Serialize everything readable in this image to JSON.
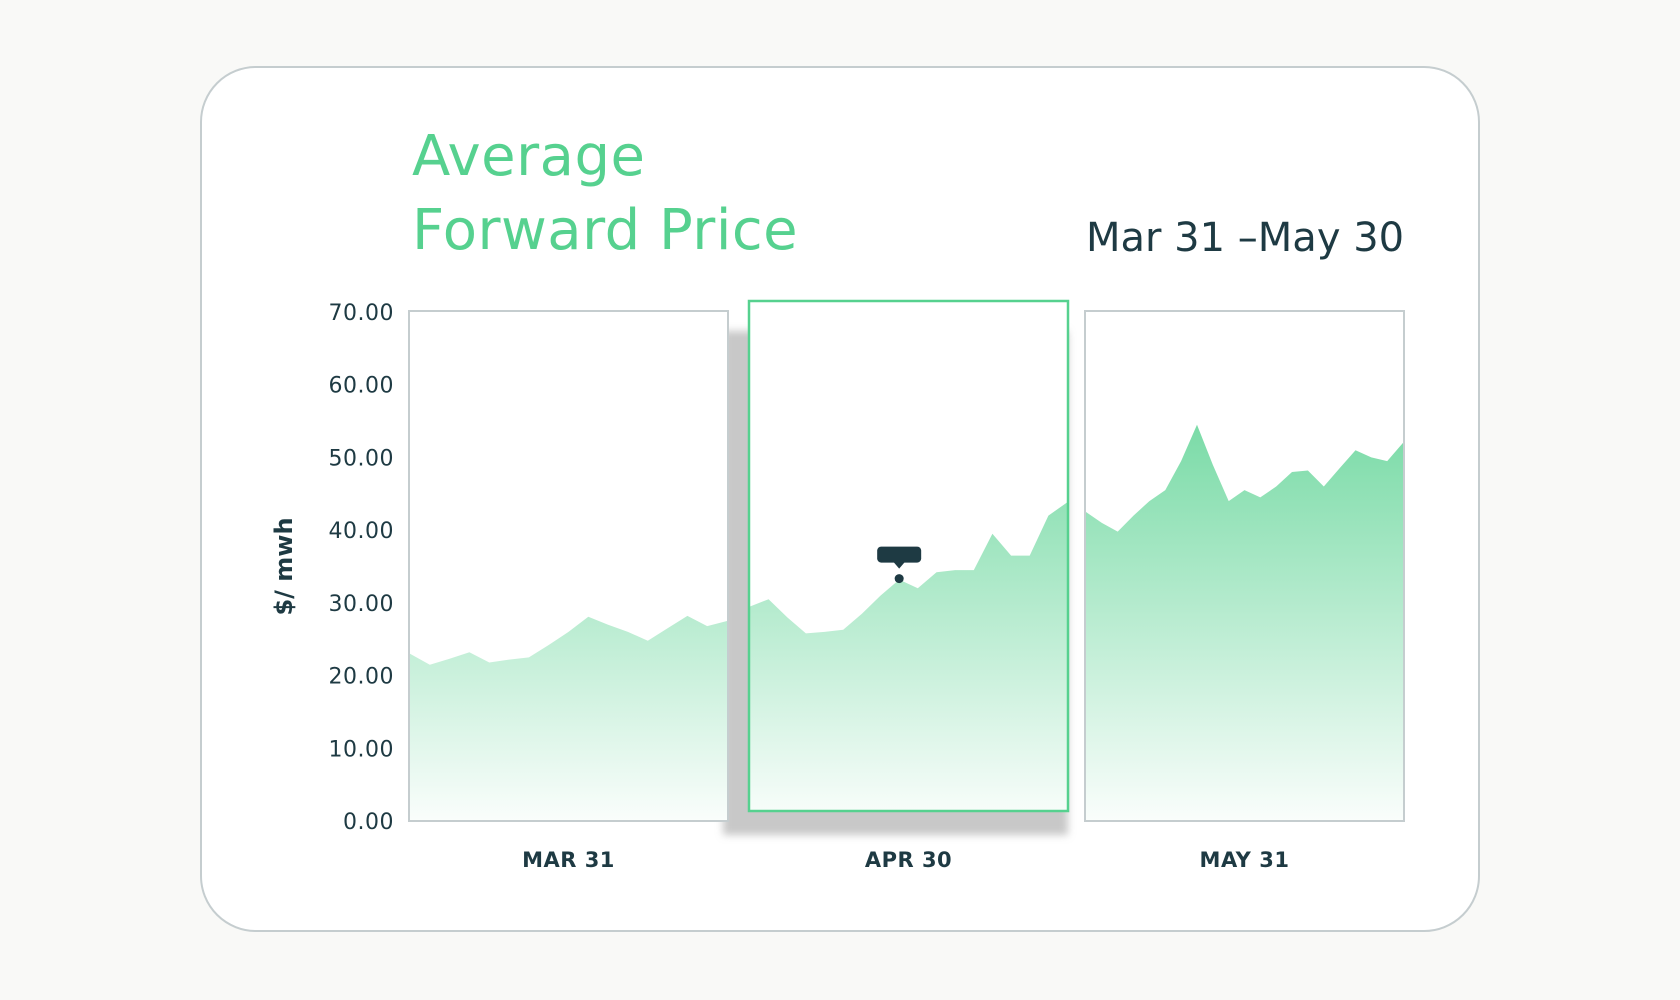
{
  "title_line1": "Average",
  "title_line2": "Forward Price",
  "date_range": "Mar 31 –May 30",
  "colors": {
    "accent": "#56d18f",
    "text_dark": "#1e3a43",
    "panel_border": "#c5cdcf",
    "tooltip": "#1e3a43"
  },
  "chart_data": {
    "type": "area",
    "ylabel": "$/ mwh",
    "ylim": [
      0,
      70
    ],
    "yticks": [
      "70.00",
      "60.00",
      "50.00",
      "40.00",
      "30.00",
      "20.00",
      "10.00",
      "0.00"
    ],
    "highlighted_panel": "APR 30",
    "tooltip_marker": {
      "panel": "APR 30",
      "value": 33.2
    },
    "panels": [
      {
        "label": "MAR 31",
        "values": [
          23.0,
          21.5,
          22.3,
          23.2,
          21.8,
          22.2,
          22.5,
          24.2,
          26.0,
          28.1,
          27.0,
          26.0,
          24.8,
          26.5,
          28.2,
          26.8,
          27.5
        ]
      },
      {
        "label": "APR 30",
        "values": [
          29.5,
          30.5,
          28.0,
          25.8,
          26.0,
          26.3,
          28.5,
          31.0,
          33.2,
          32.0,
          34.2,
          34.5,
          34.5,
          39.5,
          36.5,
          36.5,
          42.0,
          43.8
        ]
      },
      {
        "label": "MAY 31",
        "values": [
          42.5,
          41.0,
          39.8,
          42.0,
          44.0,
          45.5,
          49.5,
          54.5,
          49.0,
          44.0,
          45.5,
          44.5,
          46.0,
          48.0,
          48.2,
          46.0,
          48.5,
          51.0,
          50.0,
          49.5,
          52.0
        ]
      }
    ]
  }
}
